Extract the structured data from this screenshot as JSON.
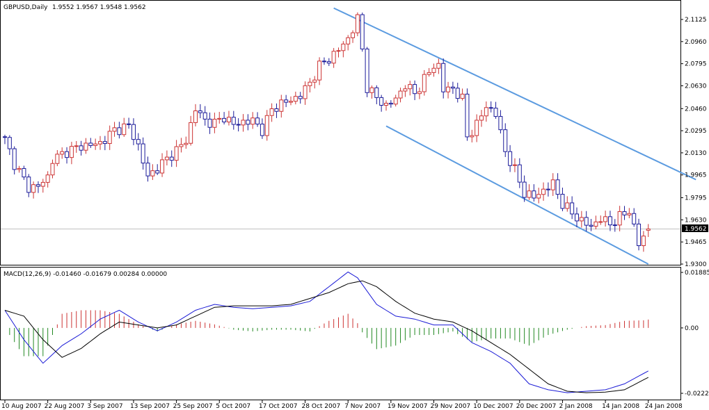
{
  "header": {
    "symbol": "GBPUSD,Daily",
    "ohlc": "1.9552 1.9567 1.9548 1.9562",
    "macd_label": "MACD(12,26,9) -0.01460 -0.01679 0.00284 0.00000"
  },
  "price_axis_labels": [
    "2.1125",
    "2.0960",
    "2.0795",
    "2.0630",
    "2.0460",
    "2.0295",
    "2.0130",
    "1.9965",
    "1.9795",
    "1.9630",
    "1.9465",
    "1.9300"
  ],
  "price_axis_values": [
    2.1125,
    2.096,
    2.0795,
    2.063,
    2.046,
    2.0295,
    2.013,
    1.9965,
    1.9795,
    1.963,
    1.9465,
    1.93
  ],
  "current_price": "1.9562",
  "macd_axis_labels": [
    "0.01885",
    "0.00",
    "-0.02221"
  ],
  "macd_axis_values": [
    0.01885,
    0.0,
    -0.02221
  ],
  "date_labels": [
    "10 Aug 2007",
    "22 Aug 2007",
    "3 Sep 2007",
    "13 Sep 2007",
    "25 Sep 2007",
    "5 Oct 2007",
    "17 Oct 2007",
    "28 Oct 2007",
    "7 Nov 2007",
    "19 Nov 2007",
    "29 Nov 2007",
    "10 Dec 2007",
    "20 Dec 2007",
    "2 Jan 2008",
    "14 Jan 2008",
    "24 Jan 2008"
  ],
  "date_label_bars": [
    0,
    9,
    18,
    27,
    36,
    45,
    54,
    63,
    72,
    81,
    90,
    99,
    108,
    117,
    126,
    135
  ],
  "colors": {
    "up_candle": "#cc3333",
    "down_candle": "#1a1a99",
    "channel": "#5b9be0",
    "macd_positive": "#cc3333",
    "macd_negative": "#228822",
    "macd_line": "#1a1ad6",
    "signal_line": "#000000",
    "price_line": "#c0c0c0"
  },
  "chart_data": [
    {
      "type": "candlestick",
      "title": "GBPUSD,Daily",
      "period": "Daily",
      "ylim": [
        1.93,
        2.12
      ],
      "last_bar_ohlc": [
        1.9552,
        1.9567,
        1.9548,
        1.9562
      ],
      "channel_upper": {
        "from": [
          69,
          2.121
        ],
        "to": [
          145,
          1.993
        ]
      },
      "channel_lower": {
        "from": [
          80,
          2.033
        ],
        "to": [
          135,
          1.93
        ]
      },
      "waypoints_close": [
        [
          0,
          2.023
        ],
        [
          2,
          2.005
        ],
        [
          5,
          1.987
        ],
        [
          7,
          1.988
        ],
        [
          9,
          1.995
        ],
        [
          10,
          2.008
        ],
        [
          13,
          2.014
        ],
        [
          16,
          2.018
        ],
        [
          20,
          2.02
        ],
        [
          23,
          2.03
        ],
        [
          26,
          2.033
        ],
        [
          28,
          2.018
        ],
        [
          30,
          1.995
        ],
        [
          33,
          2.005
        ],
        [
          36,
          2.015
        ],
        [
          38,
          2.022
        ],
        [
          40,
          2.046
        ],
        [
          42,
          2.037
        ],
        [
          44,
          2.035
        ],
        [
          46,
          2.04
        ],
        [
          48,
          2.034
        ],
        [
          50,
          2.036
        ],
        [
          52,
          2.037
        ],
        [
          54,
          2.03
        ],
        [
          56,
          2.045
        ],
        [
          58,
          2.05
        ],
        [
          60,
          2.052
        ],
        [
          62,
          2.056
        ],
        [
          64,
          2.065
        ],
        [
          66,
          2.078
        ],
        [
          68,
          2.083
        ],
        [
          70,
          2.09
        ],
        [
          72,
          2.098
        ],
        [
          74,
          2.113
        ],
        [
          75,
          2.09
        ],
        [
          76,
          2.062
        ],
        [
          78,
          2.054
        ],
        [
          80,
          2.048
        ],
        [
          82,
          2.053
        ],
        [
          84,
          2.064
        ],
        [
          86,
          2.057
        ],
        [
          88,
          2.068
        ],
        [
          90,
          2.078
        ],
        [
          91,
          2.078
        ],
        [
          92,
          2.06
        ],
        [
          94,
          2.061
        ],
        [
          96,
          2.053
        ],
        [
          97,
          2.025
        ],
        [
          99,
          2.034
        ],
        [
          101,
          2.048
        ],
        [
          103,
          2.042
        ],
        [
          105,
          2.014
        ],
        [
          107,
          2.0
        ],
        [
          109,
          1.983
        ],
        [
          111,
          1.98
        ],
        [
          113,
          1.985
        ],
        [
          115,
          1.99
        ],
        [
          117,
          1.975
        ],
        [
          119,
          1.968
        ],
        [
          121,
          1.962
        ],
        [
          123,
          1.958
        ],
        [
          125,
          1.964
        ],
        [
          127,
          1.96
        ],
        [
          129,
          1.965
        ],
        [
          131,
          1.97
        ],
        [
          133,
          1.945
        ],
        [
          134,
          1.95
        ],
        [
          135,
          1.9562
        ]
      ]
    },
    {
      "type": "macd",
      "title": "MACD(12,26,9) -0.01460 -0.01679 0.00284 0.00000",
      "params": [
        12,
        26,
        9
      ],
      "ylim": [
        -0.02221,
        0.01885
      ],
      "values": {
        "macd": -0.0146,
        "signal": -0.01679,
        "histogram": 0.00284,
        "extra": 0.0
      },
      "macd_waypoints": [
        [
          0,
          0.006
        ],
        [
          4,
          -0.004
        ],
        [
          8,
          -0.012
        ],
        [
          12,
          -0.006
        ],
        [
          16,
          -0.002
        ],
        [
          20,
          0.003
        ],
        [
          24,
          0.006
        ],
        [
          28,
          0.002
        ],
        [
          32,
          -0.001
        ],
        [
          36,
          0.002
        ],
        [
          40,
          0.006
        ],
        [
          44,
          0.008
        ],
        [
          48,
          0.007
        ],
        [
          52,
          0.0065
        ],
        [
          56,
          0.007
        ],
        [
          60,
          0.0075
        ],
        [
          64,
          0.009
        ],
        [
          68,
          0.014
        ],
        [
          72,
          0.019
        ],
        [
          74,
          0.017
        ],
        [
          78,
          0.008
        ],
        [
          82,
          0.004
        ],
        [
          86,
          0.003
        ],
        [
          90,
          0.001
        ],
        [
          94,
          0.001
        ],
        [
          98,
          -0.005
        ],
        [
          102,
          -0.008
        ],
        [
          106,
          -0.012
        ],
        [
          110,
          -0.019
        ],
        [
          114,
          -0.021
        ],
        [
          118,
          -0.022
        ],
        [
          122,
          -0.0215
        ],
        [
          126,
          -0.021
        ],
        [
          130,
          -0.019
        ],
        [
          135,
          -0.0146
        ]
      ],
      "signal_waypoints": [
        [
          0,
          0.006
        ],
        [
          4,
          0.004
        ],
        [
          8,
          -0.004
        ],
        [
          12,
          -0.01
        ],
        [
          16,
          -0.007
        ],
        [
          20,
          -0.002
        ],
        [
          24,
          0.002
        ],
        [
          28,
          0.001
        ],
        [
          32,
          0.0
        ],
        [
          36,
          0.001
        ],
        [
          40,
          0.004
        ],
        [
          44,
          0.007
        ],
        [
          48,
          0.0075
        ],
        [
          52,
          0.0075
        ],
        [
          56,
          0.0075
        ],
        [
          60,
          0.008
        ],
        [
          64,
          0.01
        ],
        [
          68,
          0.012
        ],
        [
          72,
          0.015
        ],
        [
          75,
          0.016
        ],
        [
          78,
          0.014
        ],
        [
          82,
          0.009
        ],
        [
          86,
          0.005
        ],
        [
          90,
          0.003
        ],
        [
          94,
          0.002
        ],
        [
          98,
          -0.001
        ],
        [
          102,
          -0.005
        ],
        [
          106,
          -0.009
        ],
        [
          110,
          -0.014
        ],
        [
          114,
          -0.019
        ],
        [
          118,
          -0.0215
        ],
        [
          122,
          -0.022
        ],
        [
          126,
          -0.0218
        ],
        [
          130,
          -0.021
        ],
        [
          135,
          -0.0168
        ]
      ]
    }
  ]
}
